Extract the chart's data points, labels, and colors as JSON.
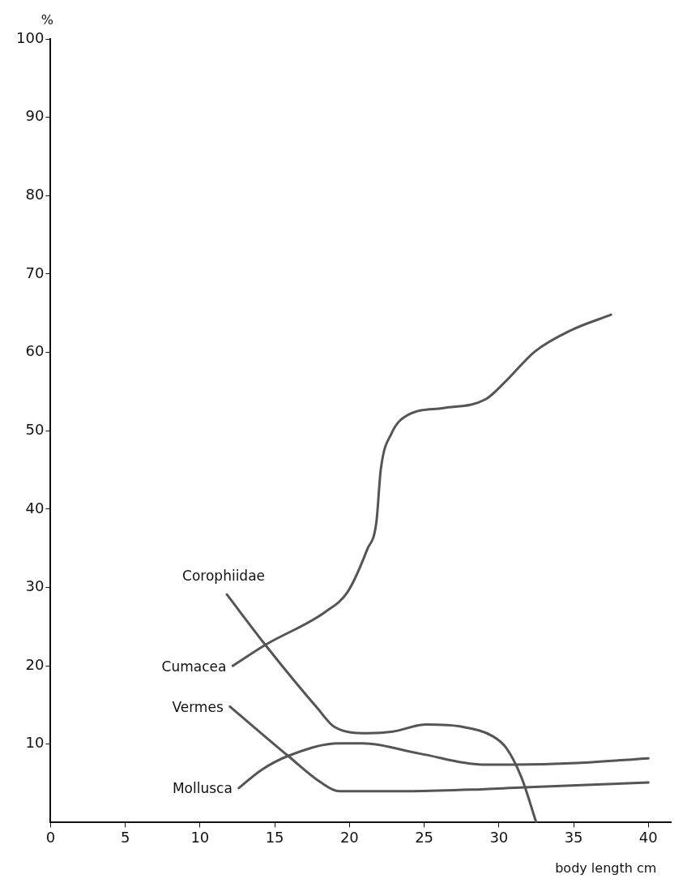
{
  "chart_data": {
    "type": "line",
    "xlabel": "body length cm",
    "ylabel": "%",
    "xlim": [
      0,
      41.5
    ],
    "ylim": [
      0,
      100
    ],
    "xticks": [
      0,
      5,
      10,
      15,
      20,
      25,
      30,
      35,
      40
    ],
    "yticks": [
      10,
      20,
      30,
      40,
      50,
      60,
      70,
      80,
      90,
      100
    ],
    "grid": false,
    "legend": false,
    "marker": "none",
    "line_style": "solid",
    "series": [
      {
        "name": "Corophiidae",
        "color": "#555555",
        "x": [
          11.8,
          14.4,
          17.9,
          19.0,
          21.2,
          22.9,
          25.1,
          27.6,
          29.6,
          30.5,
          31.5,
          32.5
        ],
        "values": [
          29.1,
          22.6,
          14.5,
          12.2,
          11.4,
          11.6,
          12.5,
          12.2,
          11.0,
          9.5,
          5.8,
          0
        ]
      },
      {
        "name": "Cumacea",
        "color": "#555555",
        "x": [
          12.2,
          14.4,
          18.4,
          19.9,
          21.2,
          21.8,
          22.1,
          22.8,
          24.0,
          26.3,
          29.1,
          30.5,
          32.4,
          34.8,
          37.5
        ],
        "values": [
          20.0,
          22.7,
          26.9,
          29.5,
          34.9,
          38.3,
          45.1,
          49.6,
          52.1,
          52.9,
          54.0,
          56.4,
          60.1,
          62.8,
          64.8
        ]
      },
      {
        "name": "Vermes",
        "color": "#555555",
        "x": [
          12.0,
          15.9,
          18.1,
          19.3,
          23.5,
          28.2,
          31.7,
          40.0
        ],
        "values": [
          14.8,
          8.5,
          5.1,
          4.0,
          4.0,
          4.2,
          4.5,
          5.1
        ]
      },
      {
        "name": "Mollusca",
        "color": "#555555",
        "x": [
          12.6,
          14.1,
          15.9,
          19.3,
          20.9,
          24.7,
          28.9,
          31.0,
          35.2,
          40.0
        ],
        "values": [
          4.4,
          6.7,
          8.5,
          10.1,
          10.1,
          8.8,
          7.4,
          7.4,
          7.6,
          8.2
        ]
      }
    ]
  }
}
